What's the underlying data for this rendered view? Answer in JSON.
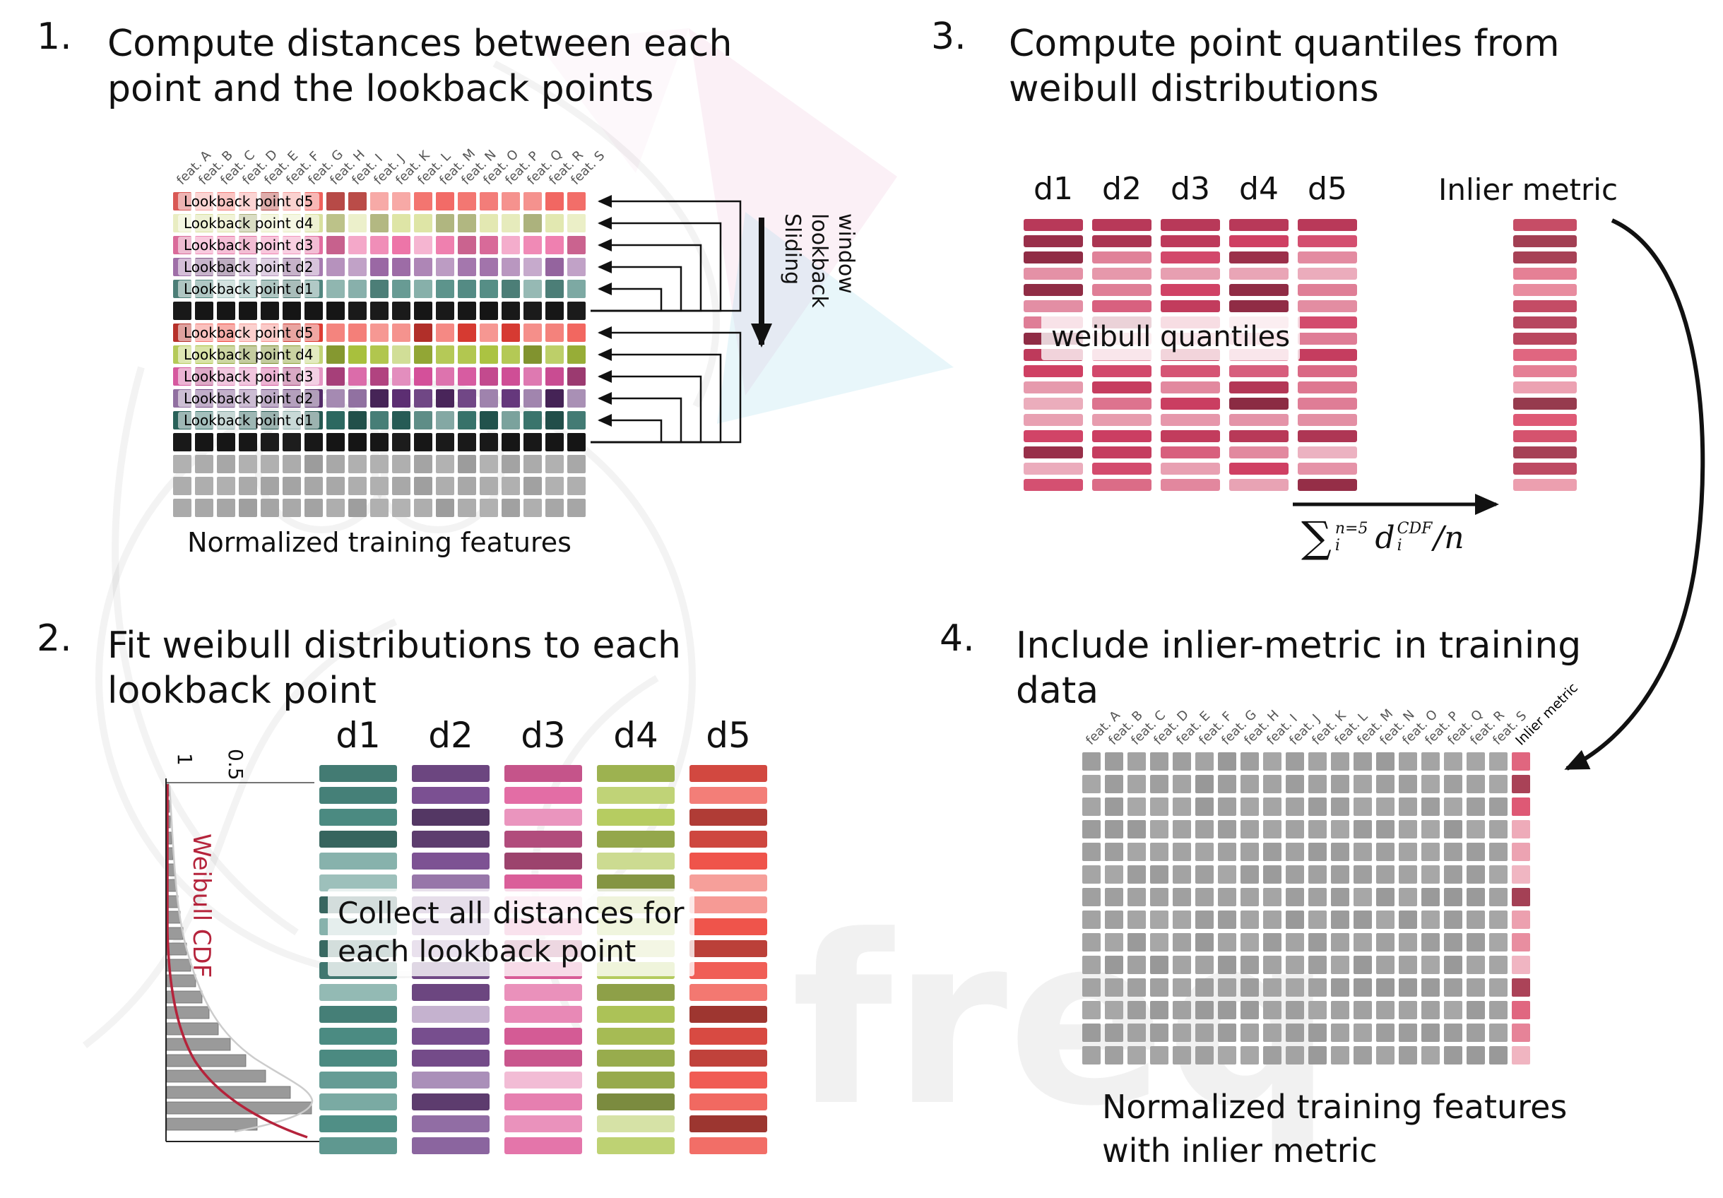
{
  "watermark": {
    "text": "freq"
  },
  "panel1": {
    "number": "1.",
    "title": [
      "Compute distances between each",
      "point and the lookback points"
    ],
    "features": [
      "feat. A",
      "feat. B",
      "feat. C",
      "feat. D",
      "feat. E",
      "feat. F",
      "feat. G",
      "feat. H",
      "feat. I",
      "feat. J",
      "feat. K",
      "feat. L",
      "feat. M",
      "feat. N",
      "feat. O",
      "feat. P",
      "feat. Q",
      "feat. R",
      "feat. S"
    ],
    "block1_labels": [
      "Lookback point d5",
      "Lookback point d4",
      "Lookback point d3",
      "Lookback point d2",
      "Lookback point d1"
    ],
    "block2_labels": [
      "Lookback point d5",
      "Lookback point d4",
      "Lookback point d3",
      "Lookback point d2",
      "Lookback point d1"
    ],
    "caption": "Normalized training features",
    "sliding_label": [
      "Sliding",
      "lookback",
      "window"
    ],
    "row_colors_block1": [
      "#f1625d",
      "#dce3a0",
      "#ed74a8",
      "#9a68a4",
      "#579088"
    ],
    "row_colors_block2": [
      "#ee4037",
      "#a9c13d",
      "#d4509a",
      "#5f3076",
      "#2d6b63"
    ],
    "black_row_color": "#161616",
    "gray_color": "#ababab",
    "gray_rows": 3
  },
  "panel2": {
    "number": "2.",
    "title": [
      "Fit weibull distributions to each",
      "lookback point"
    ],
    "plot": {
      "ylabel": "Weibull CDF",
      "ticks": [
        "1",
        "0.5"
      ],
      "curve_color": "#b5233b",
      "bar_color": "#9a9a9a"
    },
    "col_headers": [
      "d1",
      "d2",
      "d3",
      "d4",
      "d5"
    ],
    "col_colors": [
      "#4c8c83",
      "#7b5092",
      "#e0609d",
      "#b3ca5b",
      "#ef5249"
    ],
    "overlay": [
      "Collect all distances for",
      "each lookback point"
    ]
  },
  "panel3": {
    "number": "3.",
    "title": [
      "Compute point quantiles from",
      "weibull distributions"
    ],
    "col_headers": [
      "d1",
      "d2",
      "d3",
      "d4",
      "d5"
    ],
    "bar_color": "#d04064",
    "inlier_color": "#dd5672",
    "overlay": "weibull quantiles",
    "inlier_label": "Inlier metric",
    "formula": {
      "sum": "∑",
      "sum_sup": "n=5",
      "sum_sub": "i",
      "var": "d",
      "var_sup": "CDF",
      "var_sub": "i",
      "tail": "/n"
    }
  },
  "panel4": {
    "number": "4.",
    "title": [
      "Include inlier-metric in training",
      "data"
    ],
    "features": [
      "feat. A",
      "feat. B",
      "feat. C",
      "feat. D",
      "feat. E",
      "feat. F",
      "feat. G",
      "feat. H",
      "feat. I",
      "feat. J",
      "feat. K",
      "feat. L",
      "feat. M",
      "feat. N",
      "feat. O",
      "feat. P",
      "feat. Q",
      "feat. R",
      "feat. S"
    ],
    "inlier_header": "Inlier metric",
    "caption": [
      "Normalized training features",
      "with inlier metric"
    ],
    "gray_color": "#a2a2a2",
    "inlier_color": "#dd5672",
    "rows": 14
  }
}
